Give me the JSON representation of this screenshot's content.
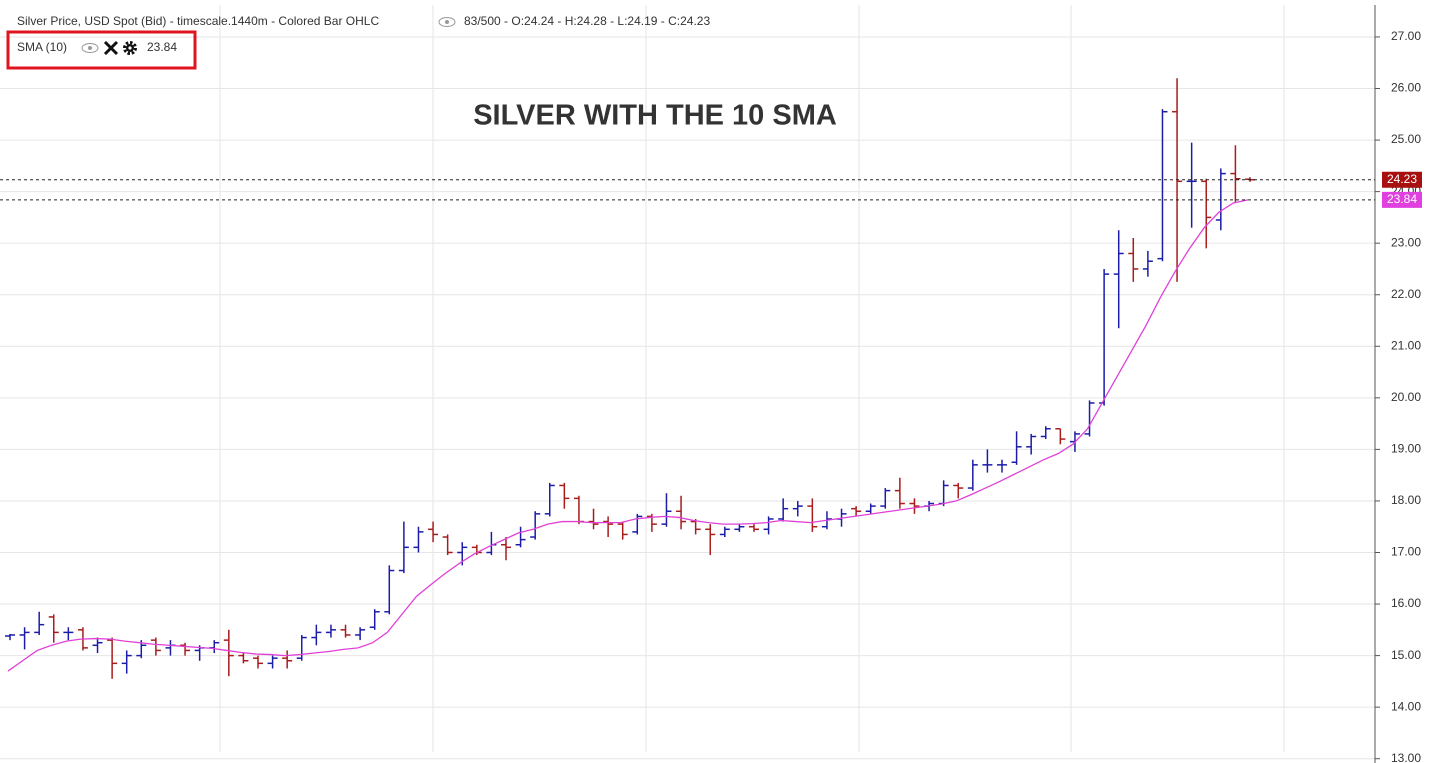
{
  "chart_data": {
    "type": "ohlc",
    "title": "Silver Price, USD Spot (Bid) - timescale.1440m - Colored Bar OHLC",
    "status": "83/500 - O:24.24 - H:24.28 - L:24.19 - C:24.23",
    "annotation": "SILVER WITH THE 10 SMA",
    "annotation_color": "#a040a0",
    "ylim": [
      13.13,
      27.62
    ],
    "yticks": [
      {
        "value": 13,
        "label": "13.00"
      },
      {
        "value": 14,
        "label": "14.00"
      },
      {
        "value": 15,
        "label": "15.00"
      },
      {
        "value": 16,
        "label": "16.00"
      },
      {
        "value": 17,
        "label": "17.00"
      },
      {
        "value": 18,
        "label": "18.00"
      },
      {
        "value": 19,
        "label": "19.00"
      },
      {
        "value": 20,
        "label": "20.00"
      },
      {
        "value": 21,
        "label": "21.00"
      },
      {
        "value": 22,
        "label": "22.00"
      },
      {
        "value": 23,
        "label": "23.00"
      },
      {
        "value": 24,
        "label": "24.00"
      },
      {
        "value": 25,
        "label": "25.00"
      },
      {
        "value": 26,
        "label": "26.00"
      },
      {
        "value": 27,
        "label": "27.00"
      }
    ],
    "grid": true,
    "series": [
      {
        "name": "Silver Price",
        "up_color": "#1c1ca8",
        "down_color": "#a81c1c",
        "open": [
          15.38,
          15.4,
          15.45,
          15.75,
          15.45,
          15.5,
          15.2,
          15.3,
          14.85,
          15.0,
          15.3,
          15.15,
          15.2,
          15.1,
          15.15,
          15.3,
          15.0,
          14.95,
          14.85,
          14.95,
          14.95,
          15.35,
          15.45,
          15.5,
          15.4,
          15.55,
          15.85,
          16.65,
          17.1,
          17.45,
          17.3,
          17.0,
          17.1,
          17.0,
          17.15,
          17.15,
          17.3,
          17.75,
          18.3,
          18.05,
          17.6,
          17.6,
          17.55,
          17.4,
          17.7,
          17.55,
          17.8,
          17.6,
          17.45,
          17.35,
          17.45,
          17.5,
          17.45,
          17.65,
          17.85,
          17.9,
          17.5,
          17.65,
          17.85,
          17.8,
          17.9,
          18.2,
          17.95,
          17.9,
          17.95,
          18.3,
          18.25,
          18.7,
          18.7,
          18.75,
          19.05,
          19.25,
          19.4,
          19.15,
          19.3,
          19.9,
          22.4,
          22.8,
          22.5,
          22.7,
          25.55,
          24.2,
          24.2,
          23.45,
          24.35,
          24.24
        ],
        "high": [
          15.42,
          15.55,
          15.85,
          15.8,
          15.55,
          15.55,
          15.35,
          15.35,
          15.1,
          15.3,
          15.35,
          15.3,
          15.25,
          15.2,
          15.3,
          15.5,
          15.05,
          15.0,
          15.0,
          15.1,
          15.4,
          15.6,
          15.6,
          15.6,
          15.55,
          15.9,
          16.75,
          17.6,
          17.5,
          17.6,
          17.35,
          17.2,
          17.15,
          17.4,
          17.3,
          17.5,
          17.8,
          18.35,
          18.35,
          18.1,
          17.85,
          17.7,
          17.6,
          17.75,
          17.75,
          18.15,
          18.1,
          17.65,
          17.55,
          17.5,
          17.55,
          17.55,
          17.7,
          18.05,
          18.0,
          18.05,
          17.8,
          17.85,
          17.9,
          17.95,
          18.25,
          18.45,
          18.05,
          18.0,
          18.4,
          18.35,
          18.8,
          19.0,
          18.8,
          19.35,
          19.3,
          19.45,
          19.4,
          19.35,
          19.95,
          22.5,
          23.25,
          23.1,
          22.85,
          25.6,
          26.2,
          24.95,
          24.25,
          24.45,
          24.9,
          24.28
        ],
        "low": [
          15.3,
          15.12,
          15.4,
          15.25,
          15.3,
          15.1,
          15.05,
          14.55,
          14.65,
          14.95,
          15.0,
          15.0,
          15.0,
          14.9,
          15.05,
          14.6,
          14.85,
          14.75,
          14.75,
          14.75,
          14.9,
          15.2,
          15.35,
          15.35,
          15.3,
          15.5,
          15.8,
          16.6,
          17.0,
          17.2,
          16.95,
          16.75,
          16.95,
          16.95,
          16.85,
          17.1,
          17.25,
          17.7,
          17.85,
          17.55,
          17.45,
          17.3,
          17.25,
          17.35,
          17.4,
          17.5,
          17.45,
          17.35,
          16.95,
          17.3,
          17.4,
          17.4,
          17.35,
          17.6,
          17.7,
          17.4,
          17.45,
          17.5,
          17.7,
          17.75,
          17.85,
          17.85,
          17.75,
          17.8,
          17.9,
          18.05,
          18.2,
          18.55,
          18.55,
          18.7,
          18.9,
          19.2,
          19.1,
          18.95,
          19.25,
          19.85,
          21.35,
          22.25,
          22.35,
          22.65,
          22.25,
          23.3,
          22.9,
          23.25,
          23.8,
          24.19
        ],
        "close": [
          15.4,
          15.45,
          15.6,
          15.45,
          15.45,
          15.15,
          15.25,
          14.85,
          15.0,
          15.2,
          15.1,
          15.2,
          15.1,
          15.15,
          15.25,
          15.0,
          14.9,
          14.85,
          14.95,
          14.9,
          15.35,
          15.45,
          15.5,
          15.4,
          15.5,
          15.85,
          16.65,
          17.1,
          17.4,
          17.35,
          17.0,
          17.1,
          17.0,
          17.15,
          17.1,
          17.25,
          17.75,
          18.3,
          18.05,
          17.6,
          17.55,
          17.55,
          17.35,
          17.7,
          17.55,
          17.8,
          17.6,
          17.45,
          17.35,
          17.45,
          17.5,
          17.45,
          17.65,
          17.85,
          17.9,
          17.5,
          17.65,
          17.75,
          17.8,
          17.9,
          18.2,
          17.95,
          17.9,
          17.95,
          18.3,
          18.25,
          18.7,
          18.7,
          18.7,
          19.05,
          19.25,
          19.4,
          19.2,
          19.3,
          19.9,
          22.4,
          22.8,
          22.5,
          22.65,
          25.55,
          24.2,
          24.2,
          23.5,
          24.35,
          24.25,
          24.23
        ]
      }
    ],
    "sma": {
      "name": "SMA (10)",
      "color": "#e040d8",
      "values": [
        14.7,
        14.9,
        15.1,
        15.2,
        15.28,
        15.32,
        15.33,
        15.32,
        15.28,
        15.25,
        15.22,
        15.2,
        15.18,
        15.16,
        15.14,
        15.1,
        15.06,
        15.03,
        15.02,
        15.0,
        15.02,
        15.05,
        15.08,
        15.12,
        15.15,
        15.25,
        15.45,
        15.8,
        16.15,
        16.38,
        16.6,
        16.8,
        16.98,
        17.12,
        17.25,
        17.38,
        17.45,
        17.55,
        17.6,
        17.6,
        17.58,
        17.58,
        17.58,
        17.65,
        17.68,
        17.7,
        17.68,
        17.62,
        17.58,
        17.55,
        17.55,
        17.56,
        17.58,
        17.62,
        17.6,
        17.58,
        17.62,
        17.66,
        17.7,
        17.74,
        17.78,
        17.82,
        17.86,
        17.9,
        17.94,
        18.0,
        18.12,
        18.25,
        18.38,
        18.52,
        18.66,
        18.8,
        18.92,
        19.1,
        19.4,
        19.9,
        20.4,
        20.9,
        21.4,
        21.95,
        22.45,
        22.9,
        23.3,
        23.6,
        23.78,
        23.84
      ]
    },
    "price_lines": [
      {
        "value": 24.23,
        "color": "#a81010"
      },
      {
        "value": 23.84,
        "color": "#e040e0"
      }
    ]
  }
}
